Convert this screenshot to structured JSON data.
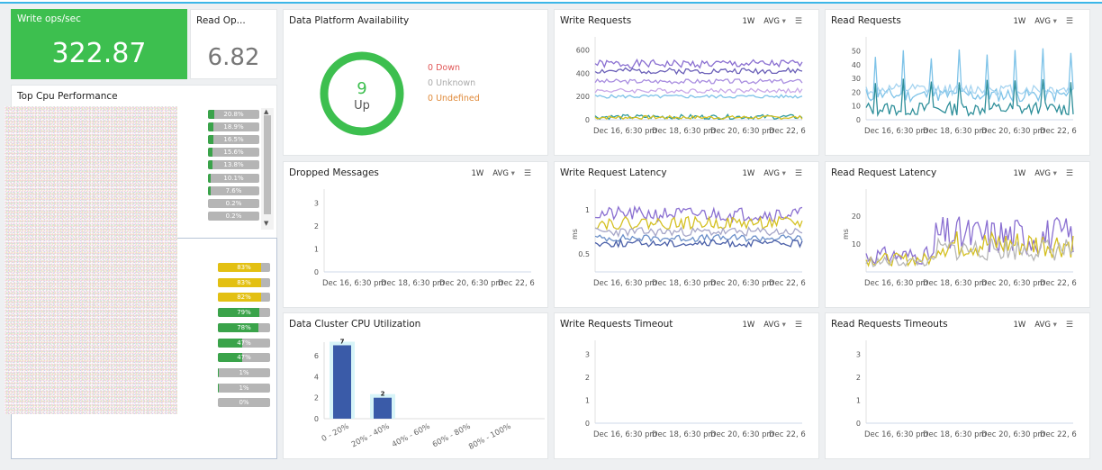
{
  "kpi": {
    "write": {
      "title": "Write ops/sec",
      "value": "322.87"
    },
    "read": {
      "title": "Read Op...",
      "value": "6.82"
    }
  },
  "top_cpu": {
    "title": "Top Cpu Performance",
    "rows": [
      {
        "pct": 20.8,
        "label": "20.8%"
      },
      {
        "pct": 18.9,
        "label": "18.9%"
      },
      {
        "pct": 16.5,
        "label": "16.5%"
      },
      {
        "pct": 15.6,
        "label": "15.6%"
      },
      {
        "pct": 13.8,
        "label": "13.8%"
      },
      {
        "pct": 10.1,
        "label": "10.1%"
      },
      {
        "pct": 7.6,
        "label": "7.6%"
      },
      {
        "pct": 0.2,
        "label": "0.2%"
      },
      {
        "pct": 0.2,
        "label": "0.2%"
      }
    ]
  },
  "lower_list": {
    "rows": [
      {
        "pct": 83,
        "label": "83%",
        "color": "#e3c012"
      },
      {
        "pct": 83,
        "label": "83%",
        "color": "#e3c012"
      },
      {
        "pct": 82,
        "label": "82%",
        "color": "#e3c012"
      },
      {
        "pct": 79,
        "label": "79%",
        "color": "#3aa34a"
      },
      {
        "pct": 78,
        "label": "78%",
        "color": "#3aa34a"
      },
      {
        "pct": 47,
        "label": "47%",
        "color": "#3aa34a"
      },
      {
        "pct": 47,
        "label": "47%",
        "color": "#3aa34a"
      },
      {
        "pct": 1,
        "label": "1%",
        "color": "#3aa34a"
      },
      {
        "pct": 1,
        "label": "1%",
        "color": "#3aa34a"
      },
      {
        "pct": 0,
        "label": "0%",
        "color": "#3aa34a"
      }
    ]
  },
  "availability": {
    "title": "Data Platform Availability",
    "up_count": "9",
    "up_label": "Up",
    "legend": [
      {
        "text": "0 Down",
        "color": "#e05555"
      },
      {
        "text": "0 Unknown",
        "color": "#aaaaaa"
      },
      {
        "text": "0 Undefined",
        "color": "#e08a3a"
      }
    ]
  },
  "controls": {
    "range": "1W",
    "agg": "AVG",
    "menu": "☰"
  },
  "colors": {
    "green": "#3dbf4f",
    "bar_blue": "#3a5ba8",
    "accent": "#3bb6e8"
  },
  "chart_data": [
    {
      "name": "write-requests",
      "title": "Write Requests",
      "type": "line",
      "x_ticks": [
        "Dec 16, 6:30 pm",
        "Dec 18, 6:30 pm",
        "Dec 20, 6:30 pm",
        "Dec 22, 6"
      ],
      "y_ticks": [
        "0",
        "200",
        "400",
        "600"
      ],
      "ylim": [
        0,
        650
      ],
      "series": [
        {
          "color": "#8a6fd1",
          "base": 480,
          "amp": 35,
          "seed": 1
        },
        {
          "color": "#6a5fb8",
          "base": 420,
          "amp": 25,
          "seed": 2
        },
        {
          "color": "#a98ee0",
          "base": 330,
          "amp": 20,
          "seed": 3
        },
        {
          "color": "#c8a8e8",
          "base": 250,
          "amp": 20,
          "seed": 4
        },
        {
          "color": "#7ec3e8",
          "base": 200,
          "amp": 15,
          "seed": 5
        },
        {
          "color": "#2e9a9a",
          "base": 25,
          "amp": 20,
          "seed": 6
        },
        {
          "color": "#d4c020",
          "base": 20,
          "amp": 15,
          "seed": 7
        }
      ]
    },
    {
      "name": "read-requests",
      "title": "Read Requests",
      "type": "line",
      "x_ticks": [
        "Dec 16, 6:30 pm",
        "Dec 18, 6:30 pm",
        "Dec 20, 6:30 pm",
        "Dec 22, 6"
      ],
      "y_ticks": [
        "0",
        "10",
        "20",
        "30",
        "40",
        "50"
      ],
      "ylim": [
        0,
        55
      ],
      "series": [
        {
          "color": "#7ec3e8",
          "base": 18,
          "amp": 5,
          "seed": 11,
          "spikes": 52
        },
        {
          "color": "#a6d4f0",
          "base": 22,
          "amp": 4,
          "seed": 12
        },
        {
          "color": "#2e8f9a",
          "base": 8,
          "amp": 5,
          "seed": 13,
          "spikes": 30
        }
      ]
    },
    {
      "name": "dropped-messages",
      "title": "Dropped Messages",
      "type": "line",
      "x_ticks": [
        "Dec 16, 6:30 pm",
        "Dec 18, 6:30 pm",
        "Dec 20, 6:30 pm",
        "Dec 22, 6"
      ],
      "y_ticks": [
        "0",
        "1",
        "2",
        "3"
      ],
      "ylim": [
        0,
        3.3
      ],
      "series": []
    },
    {
      "name": "write-request-latency",
      "title": "Write Request Latency",
      "type": "line",
      "ylabel": "ms",
      "x_ticks": [
        "Dec 16, 6:30 pm",
        "Dec 18, 6:30 pm",
        "Dec 20, 6:30 pm",
        "Dec 22, 6"
      ],
      "y_ticks": [
        "0.5",
        "1"
      ],
      "ylim": [
        0.3,
        1.15
      ],
      "series": [
        {
          "color": "#8a6fd1",
          "base": 0.95,
          "amp": 0.08,
          "seed": 21
        },
        {
          "color": "#d4c020",
          "base": 0.85,
          "amp": 0.07,
          "seed": 22
        },
        {
          "color": "#a6a6c8",
          "base": 0.75,
          "amp": 0.05,
          "seed": 23
        },
        {
          "color": "#6a8fc8",
          "base": 0.68,
          "amp": 0.04,
          "seed": 24
        },
        {
          "color": "#4a5fa8",
          "base": 0.62,
          "amp": 0.04,
          "seed": 25
        }
      ]
    },
    {
      "name": "read-request-latency",
      "title": "Read Request Latency",
      "type": "line",
      "ylabel": "ms",
      "x_ticks": [
        "Dec 16, 6:30 pm",
        "Dec 18, 6:30 pm",
        "Dec 20, 6:30 pm",
        "Dec 22, 6"
      ],
      "y_ticks": [
        "10",
        "20"
      ],
      "ylim": [
        0,
        27
      ],
      "series": [
        {
          "color": "#8a6fd1",
          "base": 13,
          "amp": 7,
          "seed": 31,
          "step": true
        },
        {
          "color": "#d4c020",
          "base": 10,
          "amp": 5,
          "seed": 32,
          "step": true
        },
        {
          "color": "#b8b8b8",
          "base": 8,
          "amp": 4,
          "seed": 33,
          "step": true
        }
      ]
    },
    {
      "name": "cpu-utilization",
      "title": "Data Cluster CPU Utilization",
      "type": "bar",
      "categories": [
        "0 - 20%",
        "20% - 40%",
        "40% - 60%",
        "60% - 80%",
        "80% - 100%"
      ],
      "values": [
        7,
        2,
        0,
        0,
        0
      ],
      "y_ticks": [
        "0",
        "2",
        "4",
        "6"
      ],
      "ylim": [
        0,
        7.3
      ]
    },
    {
      "name": "write-requests-timeout",
      "title": "Write Requests Timeout",
      "type": "line",
      "x_ticks": [
        "Dec 16, 6:30 pm",
        "Dec 18, 6:30 pm",
        "Dec 20, 6:30 pm",
        "Dec 22, 6"
      ],
      "y_ticks": [
        "0",
        "1",
        "2",
        "3"
      ],
      "ylim": [
        0,
        3.3
      ],
      "series": []
    },
    {
      "name": "read-requests-timeouts",
      "title": "Read Requests Timeouts",
      "type": "line",
      "x_ticks": [
        "Dec 16, 6:30 pm",
        "Dec 18, 6:30 pm",
        "Dec 20, 6:30 pm",
        "Dec 22, 6"
      ],
      "y_ticks": [
        "0",
        "1",
        "2",
        "3"
      ],
      "ylim": [
        0,
        3.3
      ],
      "series": []
    }
  ]
}
